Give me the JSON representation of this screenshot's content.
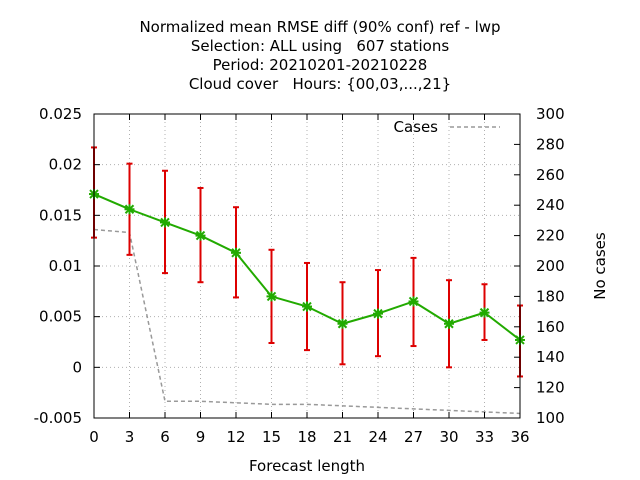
{
  "chart_data": {
    "type": "line",
    "title_lines": [
      "Normalized mean RMSE diff (90% conf) ref - lwp",
      "Selection: ALL using   607 stations",
      "Period: 20210201-20210228",
      "Cloud cover   Hours: {00,03,...,21}"
    ],
    "xlabel": "Forecast length",
    "ylabel": "",
    "y2label": "No cases",
    "x": [
      0,
      3,
      6,
      9,
      12,
      15,
      18,
      21,
      24,
      27,
      30,
      33,
      36
    ],
    "xlim": [
      0,
      36
    ],
    "ylim": [
      -0.005,
      0.025
    ],
    "y2lim": [
      100,
      300
    ],
    "x_ticks": [
      "0",
      "3",
      "6",
      "9",
      "12",
      "15",
      "18",
      "21",
      "24",
      "27",
      "30",
      "33",
      "36"
    ],
    "y_ticks": [
      "-0.005",
      "0",
      "0.005",
      "0.01",
      "0.015",
      "0.02",
      "0.025"
    ],
    "y2_ticks": [
      "100",
      "120",
      "140",
      "160",
      "180",
      "200",
      "220",
      "240",
      "260",
      "280",
      "300"
    ],
    "grid": true,
    "legend_position": "top-right",
    "series": [
      {
        "color": "#22aa00",
        "errorbar_color": "#dd0000",
        "values": [
          0.0171,
          0.0156,
          0.0143,
          0.013,
          0.0113,
          0.007,
          0.006,
          0.0043,
          0.0053,
          0.0065,
          0.0043,
          0.0054,
          0.0027
        ],
        "lower": [
          0.0128,
          0.0111,
          0.0093,
          0.0084,
          0.0069,
          0.0024,
          0.0017,
          0.0003,
          0.0011,
          0.0021,
          0.0,
          0.0027,
          -0.0009
        ],
        "upper": [
          0.0217,
          0.0201,
          0.0194,
          0.0177,
          0.0158,
          0.0116,
          0.0103,
          0.0084,
          0.0096,
          0.0108,
          0.0086,
          0.0082,
          0.0061
        ]
      },
      {
        "name": "Cases",
        "axis": "right",
        "color": "#999999",
        "values": [
          224,
          222,
          111,
          111,
          110,
          109,
          109,
          108,
          107,
          106,
          105,
          104,
          103
        ]
      }
    ]
  }
}
